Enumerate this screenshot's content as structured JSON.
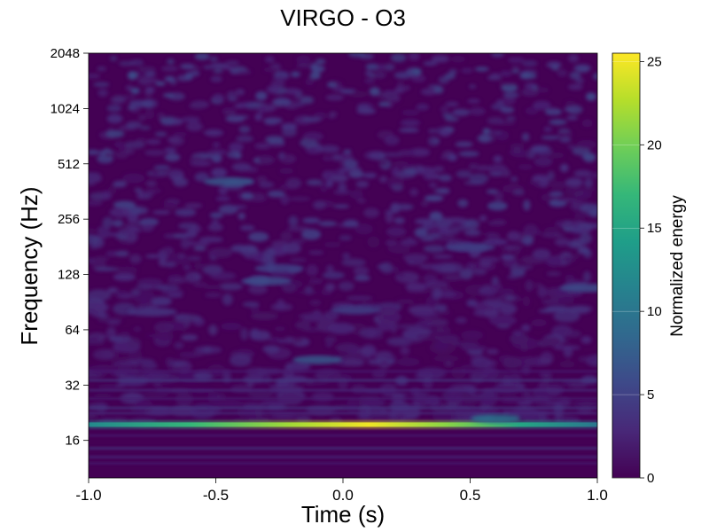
{
  "chart_data": {
    "type": "heatmap",
    "title": "VIRGO - O3",
    "xlabel": "Time (s)",
    "ylabel": "Frequency (Hz)",
    "colorbar_label": "Normalized energy",
    "xlim": [
      -1.0,
      1.0
    ],
    "ylim": [
      10,
      2048
    ],
    "yscale": "log2",
    "x_ticks": [
      -1.0,
      -0.5,
      0.0,
      0.5,
      1.0
    ],
    "x_tick_labels": [
      "-1.0",
      "-0.5",
      "0.0",
      "0.5",
      "1.0"
    ],
    "y_ticks": [
      16,
      32,
      64,
      128,
      256,
      512,
      1024,
      2048
    ],
    "y_tick_labels": [
      "16",
      "32",
      "64",
      "128",
      "256",
      "512",
      "1024",
      "2048"
    ],
    "colorbar_range": [
      0,
      25.5
    ],
    "colorbar_ticks": [
      0,
      5,
      10,
      15,
      20,
      25
    ],
    "colorbar_tick_labels": [
      "0",
      "5",
      "10",
      "15",
      "20",
      "25"
    ],
    "colormap": "viridis",
    "colormap_stops": [
      "#440154",
      "#482878",
      "#3e4989",
      "#31688e",
      "#26828e",
      "#1f9e89",
      "#35b779",
      "#6ece58",
      "#b5de2b",
      "#fde725"
    ],
    "features": [
      {
        "kind": "horizontal-line",
        "frequency_hz": 19.5,
        "time_start": -1.0,
        "time_end": 1.0,
        "peak_energy": 25,
        "peak_time": 0.1
      },
      {
        "kind": "blob",
        "time": 0.6,
        "frequency_hz": 21,
        "energy": 10
      },
      {
        "kind": "blob",
        "time": -0.1,
        "frequency_hz": 44,
        "energy": 7
      },
      {
        "kind": "blob",
        "time": 0.05,
        "frequency_hz": 82,
        "energy": 5
      },
      {
        "kind": "blob",
        "time": -0.75,
        "frequency_hz": 80,
        "energy": 4
      },
      {
        "kind": "blob",
        "time": -0.3,
        "frequency_hz": 118,
        "energy": 6
      },
      {
        "kind": "blob",
        "time": -0.25,
        "frequency_hz": 138,
        "energy": 5
      },
      {
        "kind": "blob",
        "time": 0.95,
        "frequency_hz": 108,
        "energy": 6
      },
      {
        "kind": "blob",
        "time": -0.45,
        "frequency_hz": 410,
        "energy": 7
      },
      {
        "kind": "blob",
        "time": 0.5,
        "frequency_hz": 180,
        "energy": 5
      }
    ]
  }
}
